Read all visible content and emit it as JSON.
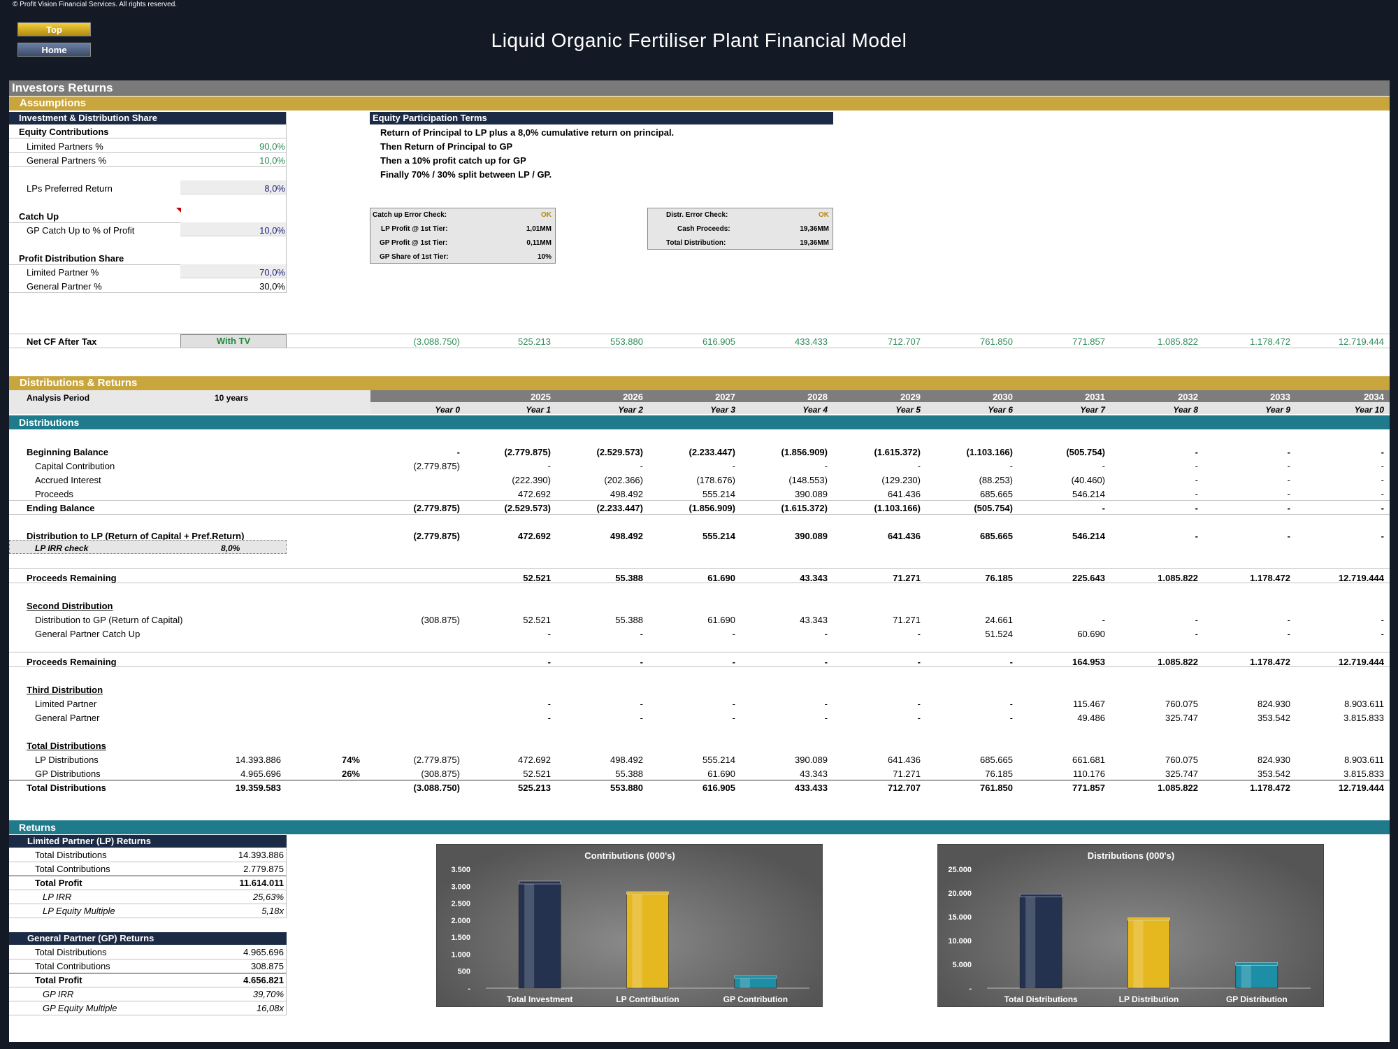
{
  "copyright": "© Profit Vision Financial Services. All rights reserved.",
  "nav": {
    "top": "Top",
    "home": "Home"
  },
  "title": "Liquid Organic Fertiliser Plant Financial Model",
  "section_title": "Investors Returns",
  "assumptions": {
    "header": "Assumptions",
    "inv_header": "Investment & Distribution Share",
    "equity_contrib": "Equity Contributions",
    "lp_pct_label": "Limited Partners %",
    "lp_pct": "90,0%",
    "gp_pct_label": "General Partners %",
    "gp_pct": "10,0%",
    "pref_label": "LPs Preferred Return",
    "pref": "8,0%",
    "catchup": "Catch Up",
    "gp_catch_label": "GP Catch Up to % of Profit",
    "gp_catch": "10,0%",
    "profit_share": "Profit Distribution Share",
    "lp_share_label": "Limited Partner %",
    "lp_share": "70,0%",
    "gp_share_label": "General Partner %",
    "gp_share": "30,0%"
  },
  "terms": {
    "header": "Equity Participation Terms",
    "lines": [
      "Return of Principal to LP plus a 8,0% cumulative return on principal.",
      "Then Return of Principal to GP",
      "Then a 10% profit catch up for GP",
      "Finally 70% / 30% split between LP / GP."
    ]
  },
  "checks1": [
    {
      "label": "Catch up Error Check:",
      "value": "OK"
    },
    {
      "label": "LP Profit @ 1st Tier:",
      "value": "1,01MM"
    },
    {
      "label": "GP Profit @ 1st Tier:",
      "value": "0,11MM"
    },
    {
      "label": "GP Share of 1st Tier:",
      "value": "10%"
    }
  ],
  "checks2": [
    {
      "label": "Distr. Error Check:",
      "value": "OK"
    },
    {
      "label": "Cash Proceeds:",
      "value": "19,36MM"
    },
    {
      "label": "Total Distribution:",
      "value": "19,36MM"
    }
  ],
  "netcf": {
    "label": "Net CF After Tax",
    "option": "With TV",
    "values": [
      "(3.088.750)",
      "525.213",
      "553.880",
      "616.905",
      "433.433",
      "712.707",
      "761.850",
      "771.857",
      "1.085.822",
      "1.178.472",
      "12.719.444"
    ]
  },
  "dist_header": "Distributions & Returns",
  "analysis": {
    "label": "Analysis Period",
    "value": "10 years"
  },
  "years": [
    "",
    "2025",
    "2026",
    "2027",
    "2028",
    "2029",
    "2030",
    "2031",
    "2032",
    "2033",
    "2034"
  ],
  "year_labels": [
    "Year 0",
    "Year 1",
    "Year 2",
    "Year 3",
    "Year 4",
    "Year 5",
    "Year 6",
    "Year 7",
    "Year 8",
    "Year 9",
    "Year 10"
  ],
  "distributions_header": "Distributions",
  "rows": {
    "beg": {
      "label": "Beginning Balance",
      "v": [
        "-",
        "(2.779.875)",
        "(2.529.573)",
        "(2.233.447)",
        "(1.856.909)",
        "(1.615.372)",
        "(1.103.166)",
        "(505.754)",
        "-",
        "-",
        "-"
      ]
    },
    "cap": {
      "label": "Capital Contribution",
      "v": [
        "(2.779.875)",
        "-",
        "-",
        "-",
        "-",
        "-",
        "-",
        "-",
        "-",
        "-",
        "-"
      ]
    },
    "acc": {
      "label": "Accrued Interest",
      "v": [
        "",
        "(222.390)",
        "(202.366)",
        "(178.676)",
        "(148.553)",
        "(129.230)",
        "(88.253)",
        "(40.460)",
        "-",
        "-",
        "-"
      ]
    },
    "pro": {
      "label": "Proceeds",
      "v": [
        "",
        "472.692",
        "498.492",
        "555.214",
        "390.089",
        "641.436",
        "685.665",
        "546.214",
        "-",
        "-",
        "-"
      ]
    },
    "end": {
      "label": "Ending Balance",
      "v": [
        "(2.779.875)",
        "(2.529.573)",
        "(2.233.447)",
        "(1.856.909)",
        "(1.615.372)",
        "(1.103.166)",
        "(505.754)",
        "-",
        "-",
        "-",
        "-"
      ]
    },
    "dlp": {
      "label": "Distribution to LP (Return of Capital + Pref.Return)",
      "v": [
        "(2.779.875)",
        "472.692",
        "498.492",
        "555.214",
        "390.089",
        "641.436",
        "685.665",
        "546.214",
        "-",
        "-",
        "-"
      ]
    },
    "irrchk": {
      "label": "LP IRR check",
      "value": "8,0%"
    },
    "rem1": {
      "label": "Proceeds Remaining",
      "v": [
        "",
        "52.521",
        "55.388",
        "61.690",
        "43.343",
        "71.271",
        "76.185",
        "225.643",
        "1.085.822",
        "1.178.472",
        "12.719.444"
      ]
    },
    "second": "Second Distribution",
    "dgp": {
      "label": "Distribution to GP (Return of Capital)",
      "v": [
        "(308.875)",
        "52.521",
        "55.388",
        "61.690",
        "43.343",
        "71.271",
        "24.661",
        "-",
        "-",
        "-",
        "-"
      ]
    },
    "gpc": {
      "label": "General Partner Catch Up",
      "v": [
        "",
        "-",
        "-",
        "-",
        "-",
        "-",
        "51.524",
        "60.690",
        "-",
        "-",
        "-"
      ]
    },
    "rem2": {
      "label": "Proceeds Remaining",
      "v": [
        "",
        "-",
        "-",
        "-",
        "-",
        "-",
        "-",
        "164.953",
        "1.085.822",
        "1.178.472",
        "12.719.444"
      ]
    },
    "third": "Third Distribution",
    "tlp": {
      "label": "Limited Partner",
      "v": [
        "",
        "-",
        "-",
        "-",
        "-",
        "-",
        "-",
        "115.467",
        "760.075",
        "824.930",
        "8.903.611"
      ]
    },
    "tgp": {
      "label": "General Partner",
      "v": [
        "",
        "-",
        "-",
        "-",
        "-",
        "-",
        "-",
        "49.486",
        "325.747",
        "353.542",
        "3.815.833"
      ]
    },
    "totals": "Total Distributions",
    "lpd": {
      "label": "LP Distributions",
      "total": "14.393.886",
      "pct": "74%",
      "v": [
        "(2.779.875)",
        "472.692",
        "498.492",
        "555.214",
        "390.089",
        "641.436",
        "685.665",
        "661.681",
        "760.075",
        "824.930",
        "8.903.611"
      ]
    },
    "gpd": {
      "label": "GP Distributions",
      "total": "4.965.696",
      "pct": "26%",
      "v": [
        "(308.875)",
        "52.521",
        "55.388",
        "61.690",
        "43.343",
        "71.271",
        "76.185",
        "110.176",
        "325.747",
        "353.542",
        "3.815.833"
      ]
    },
    "tot": {
      "label": "Total Distributions",
      "total": "19.359.583",
      "v": [
        "(3.088.750)",
        "525.213",
        "553.880",
        "616.905",
        "433.433",
        "712.707",
        "761.850",
        "771.857",
        "1.085.822",
        "1.178.472",
        "12.719.444"
      ]
    }
  },
  "returns_header": "Returns",
  "lp_returns": {
    "header": "Limited Partner (LP) Returns",
    "rows": [
      {
        "label": "Total Distributions",
        "value": "14.393.886"
      },
      {
        "label": "Total Contributions",
        "value": "2.779.875"
      },
      {
        "label": "Total Profit",
        "value": "11.614.011"
      },
      {
        "label": "LP IRR",
        "value": "25,63%"
      },
      {
        "label": "LP Equity Multiple",
        "value": "5,18x"
      }
    ]
  },
  "gp_returns": {
    "header": "General Partner (GP) Returns",
    "rows": [
      {
        "label": "Total Distributions",
        "value": "4.965.696"
      },
      {
        "label": "Total Contributions",
        "value": "308.875"
      },
      {
        "label": "Total Profit",
        "value": "4.656.821"
      },
      {
        "label": "GP IRR",
        "value": "39,70%"
      },
      {
        "label": "GP Equity Multiple",
        "value": "16,08x"
      }
    ]
  },
  "chart_data": [
    {
      "type": "bar",
      "title": "Contributions (000's)",
      "categories": [
        "Total Investment",
        "LP Contribution",
        "GP Contribution"
      ],
      "values": [
        3088.75,
        2779.875,
        308.875
      ],
      "ylim": [
        0,
        3500
      ],
      "yticks": [
        "-",
        "500",
        "1.000",
        "1.500",
        "2.000",
        "2.500",
        "3.000",
        "3.500"
      ],
      "colors": [
        "#24324f",
        "#e6b820",
        "#1c8fa6"
      ]
    },
    {
      "type": "bar",
      "title": "Distributions (000's)",
      "categories": [
        "Total Distributions",
        "LP Distribution",
        "GP Distribution"
      ],
      "values": [
        19359.583,
        14393.886,
        4965.696
      ],
      "ylim": [
        0,
        25000
      ],
      "yticks": [
        "-",
        "5.000",
        "10.000",
        "15.000",
        "20.000",
        "25.000"
      ],
      "colors": [
        "#24324f",
        "#e6b820",
        "#1c8fa6"
      ]
    }
  ]
}
